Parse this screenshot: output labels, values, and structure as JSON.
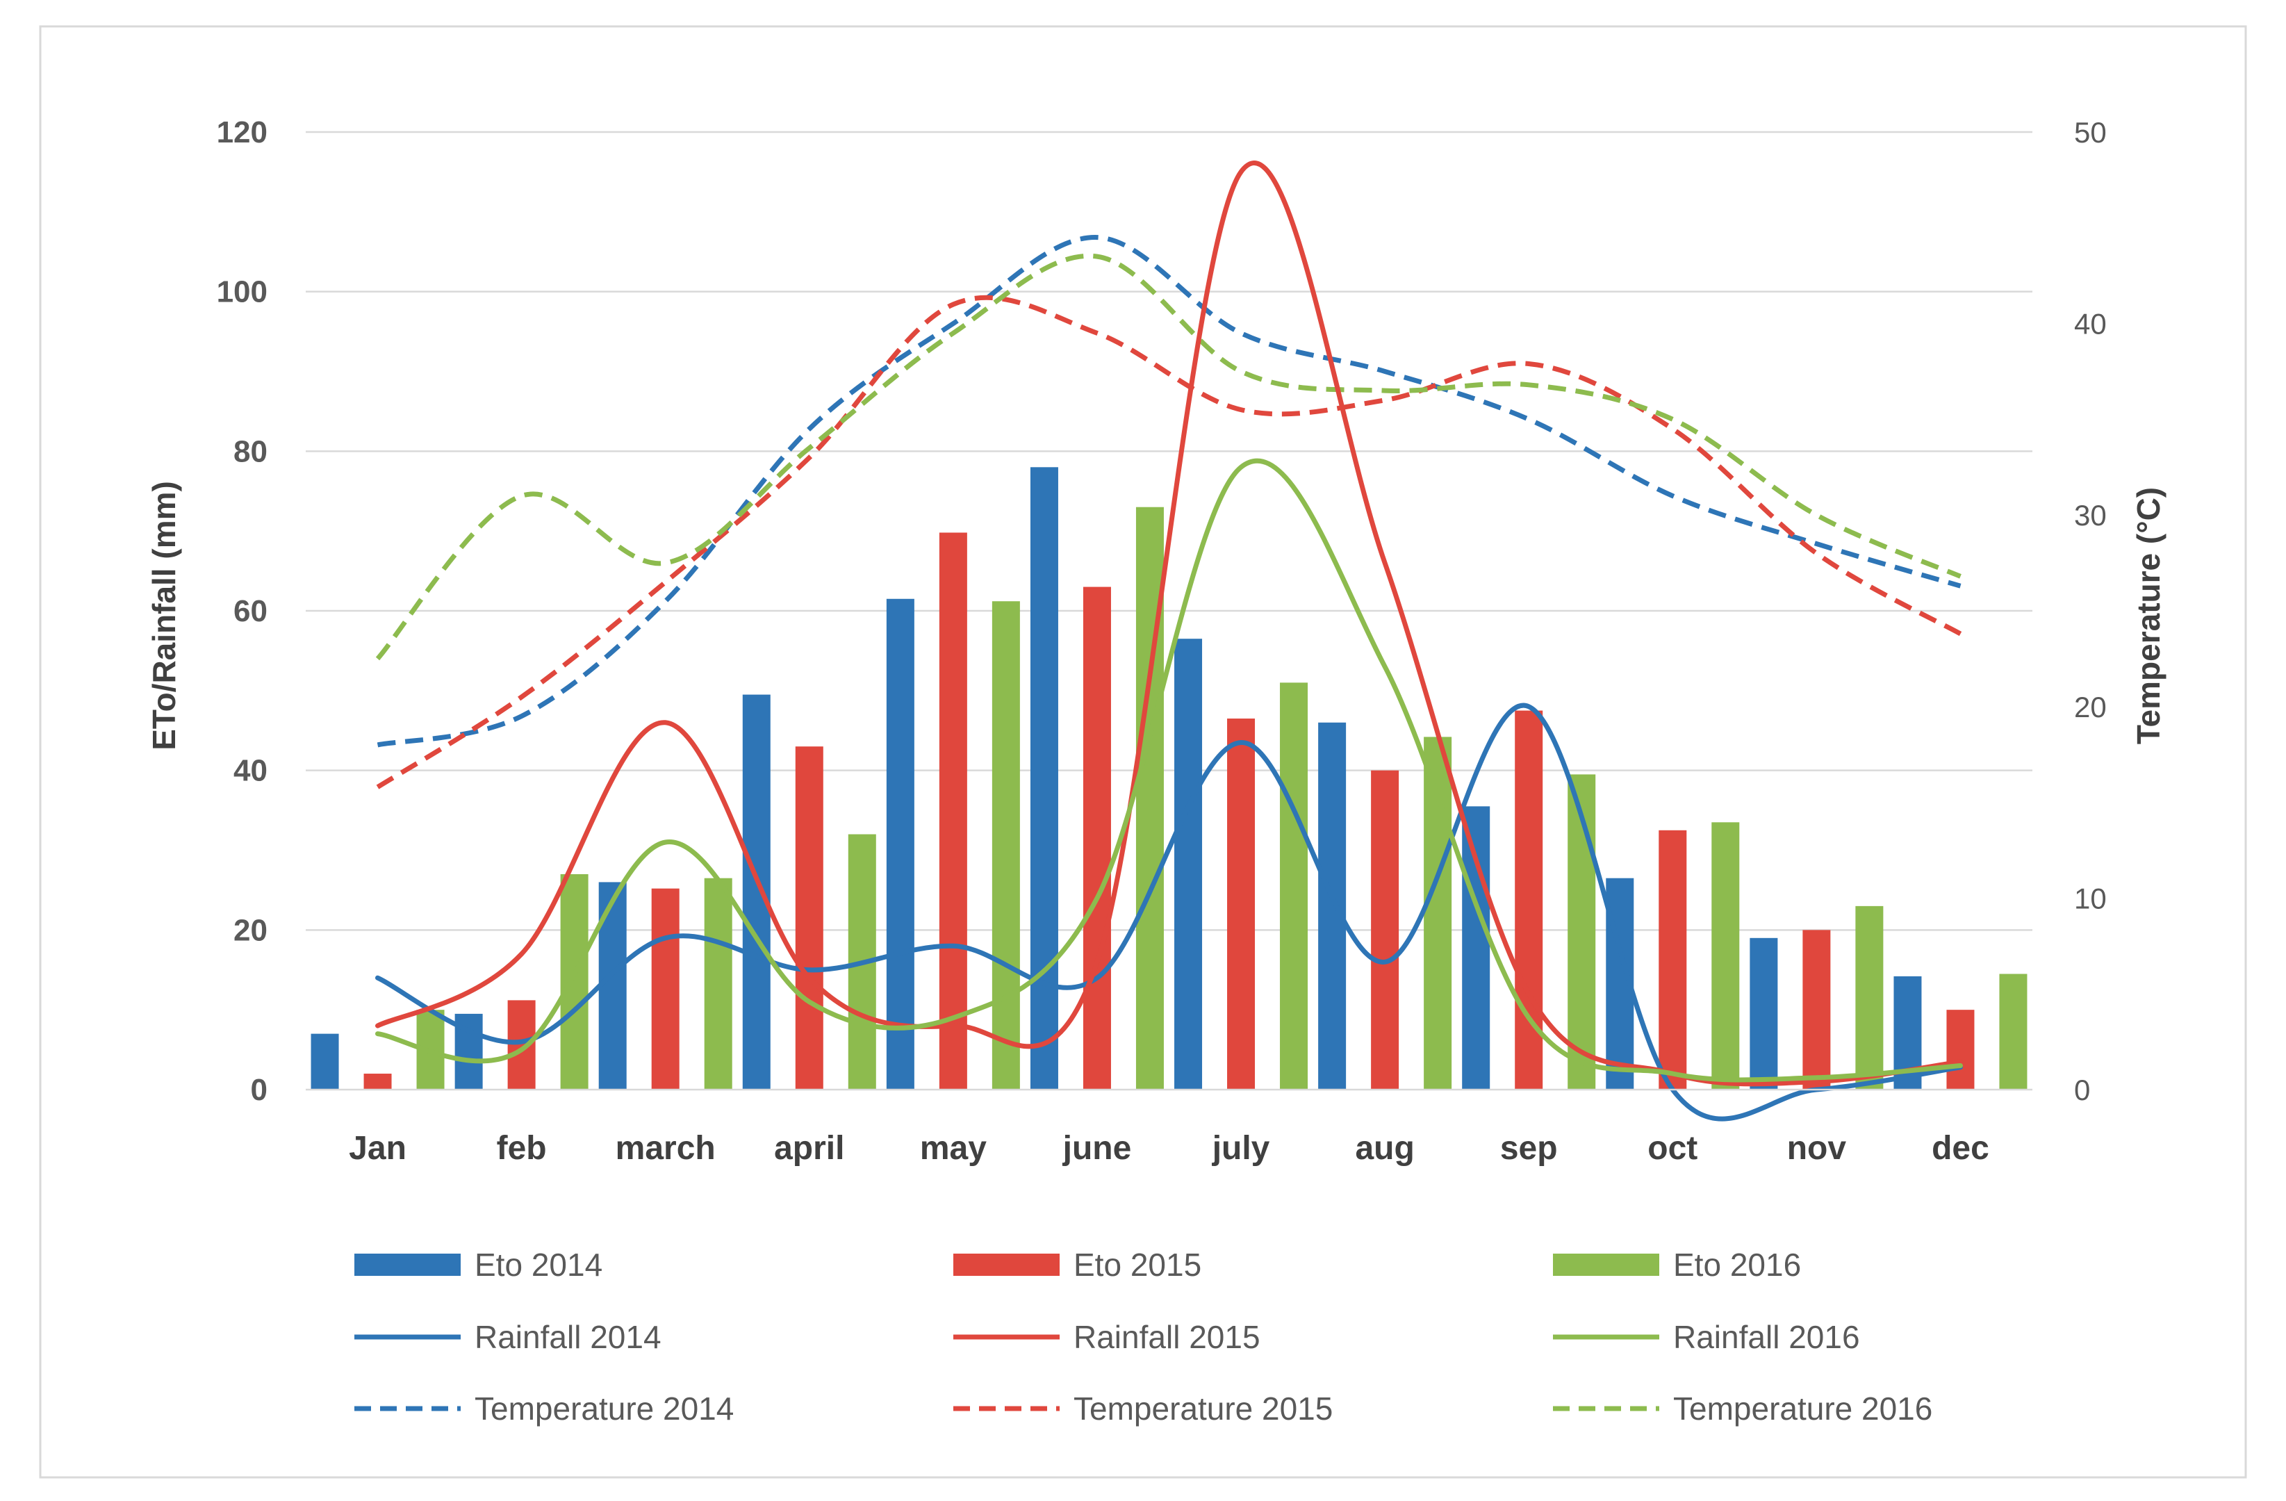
{
  "chart_data": {
    "type": "bar",
    "categories": [
      "Jan",
      "feb",
      "march",
      "april",
      "may",
      "june",
      "july",
      "aug",
      "sep",
      "oct",
      "nov",
      "dec"
    ],
    "y_left": {
      "label": "ETo/Rainfall (mm)",
      "range": [
        0,
        120
      ],
      "ticks": [
        "0",
        "20",
        "40",
        "60",
        "80",
        "100",
        "120"
      ]
    },
    "y_right": {
      "label": "Temperature (°C)",
      "range": [
        0,
        50
      ],
      "ticks": [
        "0",
        "10",
        "20",
        "30",
        "40",
        "50"
      ]
    },
    "grid": true,
    "legend_position": "bottom",
    "bar_series": [
      {
        "name": "Eto 2014",
        "color": "#2e75b6",
        "values": [
          7,
          9.5,
          26,
          49.5,
          61.5,
          78,
          56.5,
          46,
          35.5,
          26.5,
          19,
          14.2
        ]
      },
      {
        "name": "Eto 2015",
        "color": "#e0473d",
        "values": [
          2,
          11.2,
          25.2,
          43,
          69.8,
          63,
          46.5,
          40,
          47.5,
          32.5,
          20,
          10
        ]
      },
      {
        "name": "Eto 2016",
        "color": "#8dbb4e",
        "values": [
          10,
          27,
          26.5,
          32,
          61.2,
          73,
          51,
          44.2,
          39.5,
          33.5,
          23,
          14.5
        ]
      }
    ],
    "rainfall_series": [
      {
        "name": "Rainfall 2014",
        "color": "#2e75b6",
        "axis": "left",
        "values": [
          14,
          6,
          19,
          15,
          18,
          14,
          43.5,
          16,
          48,
          0,
          0,
          2.8
        ]
      },
      {
        "name": "Rainfall 2015",
        "color": "#e0473d",
        "axis": "left",
        "values": [
          8,
          17,
          46,
          14,
          8,
          16,
          115,
          66,
          12,
          2,
          1,
          3.5
        ]
      },
      {
        "name": "Rainfall 2016",
        "color": "#8dbb4e",
        "axis": "left",
        "values": [
          7,
          5,
          31,
          11,
          9,
          24,
          78,
          53,
          9,
          2,
          1.5,
          3
        ]
      }
    ],
    "temperature_series": [
      {
        "name": "Temperature 2014",
        "color": "#2e75b6",
        "axis": "right",
        "dashed": true,
        "values": [
          18,
          19.5,
          25.5,
          34.5,
          40,
          44.5,
          39.5,
          37.5,
          35,
          31,
          28.5,
          26.3
        ]
      },
      {
        "name": "Temperature 2015",
        "color": "#e0473d",
        "axis": "right",
        "dashed": true,
        "values": [
          15.8,
          20.5,
          26.5,
          33,
          41,
          39.5,
          35.5,
          36,
          37.9,
          34.5,
          28,
          23.8
        ]
      },
      {
        "name": "Temperature 2016",
        "color": "#8dbb4e",
        "axis": "right",
        "dashed": true,
        "values": [
          22.5,
          31,
          27.5,
          33.5,
          39.5,
          43.5,
          37.5,
          36.5,
          36.8,
          35,
          30,
          26.8
        ]
      }
    ]
  }
}
